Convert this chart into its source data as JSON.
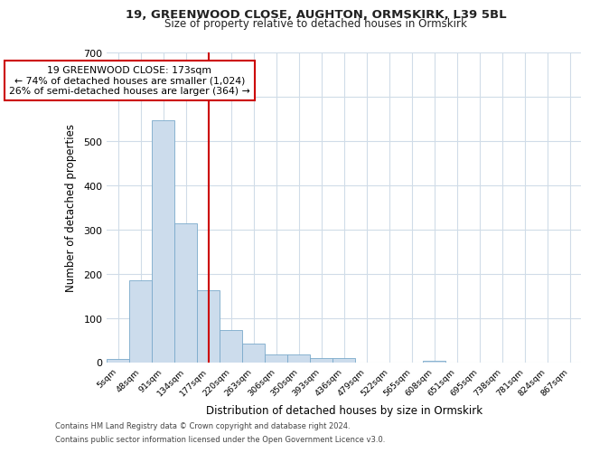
{
  "title1": "19, GREENWOOD CLOSE, AUGHTON, ORMSKIRK, L39 5BL",
  "title2": "Size of property relative to detached houses in Ormskirk",
  "xlabel": "Distribution of detached houses by size in Ormskirk",
  "ylabel": "Number of detached properties",
  "categories": [
    "5sqm",
    "48sqm",
    "91sqm",
    "134sqm",
    "177sqm",
    "220sqm",
    "263sqm",
    "306sqm",
    "350sqm",
    "393sqm",
    "436sqm",
    "479sqm",
    "522sqm",
    "565sqm",
    "608sqm",
    "651sqm",
    "695sqm",
    "738sqm",
    "781sqm",
    "824sqm",
    "867sqm"
  ],
  "values": [
    8,
    187,
    548,
    315,
    163,
    73,
    42,
    18,
    18,
    10,
    11,
    0,
    0,
    0,
    5,
    0,
    0,
    0,
    0,
    0,
    0
  ],
  "bar_color": "#ccdcec",
  "bar_edge_color": "#7aaacb",
  "annotation_line1": "19 GREENWOOD CLOSE: 173sqm",
  "annotation_line2": "← 74% of detached houses are smaller (1,024)",
  "annotation_line3": "26% of semi-detached houses are larger (364) →",
  "vline_color": "#cc0000",
  "annotation_box_edge_color": "#cc0000",
  "footer1": "Contains HM Land Registry data © Crown copyright and database right 2024.",
  "footer2": "Contains public sector information licensed under the Open Government Licence v3.0.",
  "bg_color": "#ffffff",
  "plot_bg_color": "#ffffff",
  "grid_color": "#d0dce8",
  "ylim": [
    0,
    700
  ],
  "yticks": [
    0,
    100,
    200,
    300,
    400,
    500,
    600,
    700
  ],
  "vline_x": 4.0
}
